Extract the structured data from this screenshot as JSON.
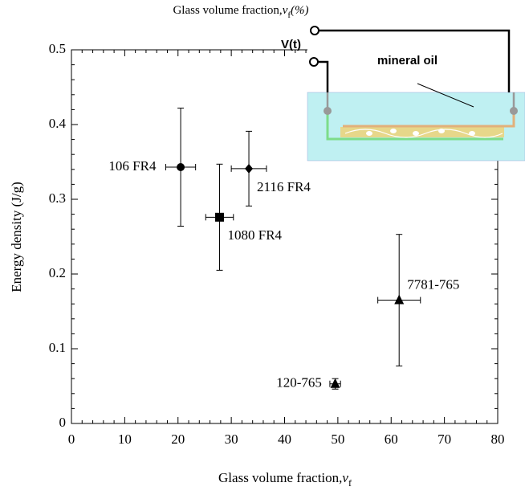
{
  "chart_data": {
    "type": "scatter",
    "title": "Glass volume fraction,",
    "title_var": "v",
    "title_sub": "f",
    "title_unit": "(%)",
    "x_label": "Glass volume fraction,",
    "x_label_var": "v",
    "x_label_sub": "f",
    "y_label": "Energy density (J/g)",
    "xlim": [
      0,
      80
    ],
    "xticks": [
      0,
      10,
      20,
      30,
      40,
      50,
      60,
      70,
      80
    ],
    "ylim": [
      0,
      0.5
    ],
    "yticks": [
      0,
      0.1,
      0.2,
      0.3,
      0.4,
      0.5
    ],
    "color": "#000000",
    "series": [
      {
        "name": "106 FR4",
        "marker": "circle",
        "x": [
          20.5
        ],
        "values": [
          0.343
        ],
        "xerr": [
          2.8
        ],
        "yerr": [
          0.079
        ]
      },
      {
        "name": "1080 FR4",
        "marker": "square",
        "x": [
          27.8
        ],
        "values": [
          0.276
        ],
        "xerr": [
          2.6
        ],
        "yerr": [
          0.071
        ]
      },
      {
        "name": "2116 FR4",
        "marker": "diamond",
        "x": [
          33.3
        ],
        "values": [
          0.341
        ],
        "xerr": [
          3.3
        ],
        "yerr": [
          0.05
        ]
      },
      {
        "name": "120-765",
        "marker": "triangle",
        "x": [
          49.5
        ],
        "values": [
          0.053
        ],
        "xerr": [
          1.0
        ],
        "yerr": [
          0.007
        ]
      },
      {
        "name": "7781-765",
        "marker": "triangle",
        "x": [
          61.5
        ],
        "values": [
          0.165
        ],
        "xerr": [
          4.0
        ],
        "yerr": [
          0.088
        ]
      }
    ],
    "inset": {
      "source_label": "V(t)",
      "medium_label": "mineral oil"
    }
  }
}
